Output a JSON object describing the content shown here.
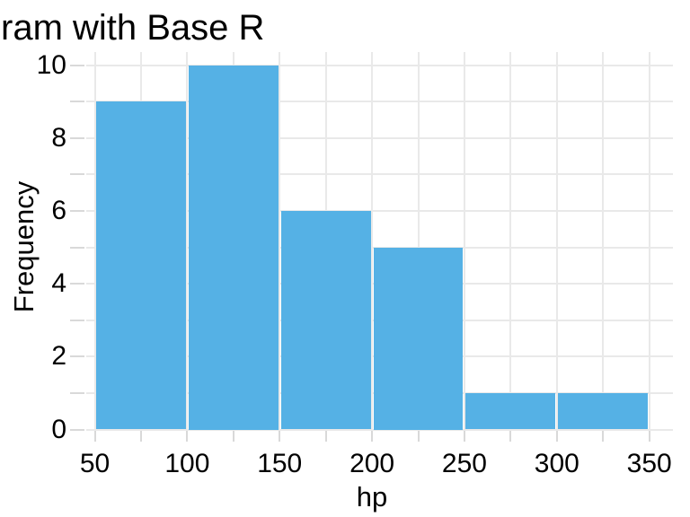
{
  "chart_data": {
    "type": "bar",
    "variant": "histogram",
    "title": "ram with Base R",
    "xlabel": "hp",
    "ylabel": "Frequency",
    "breaks": [
      50,
      100,
      150,
      200,
      250,
      300,
      350
    ],
    "counts": [
      9,
      10,
      6,
      5,
      1,
      1
    ],
    "xlim": [
      50,
      350
    ],
    "ylim": [
      0,
      10
    ],
    "x_tick_label_values": [
      50,
      100,
      150,
      200,
      250,
      300,
      350
    ],
    "x_tick_labels": [
      "50",
      "100",
      "150",
      "200",
      "250",
      "300",
      "350"
    ],
    "x_minor_tick_step": 25,
    "y_tick_label_values": [
      0,
      2,
      4,
      6,
      8,
      10
    ],
    "y_tick_labels": [
      "0",
      "2",
      "4",
      "6",
      "8",
      "10"
    ],
    "y_minor_tick_step": 1,
    "grid": "on",
    "legend": "none",
    "colors": {
      "bar_fill": "#55B1E5",
      "bar_separator": "#FFFFFF",
      "grid": "#E9E9E9",
      "tick": "#D9D9D9",
      "text": "#000000",
      "background": "#FFFFFF"
    }
  }
}
